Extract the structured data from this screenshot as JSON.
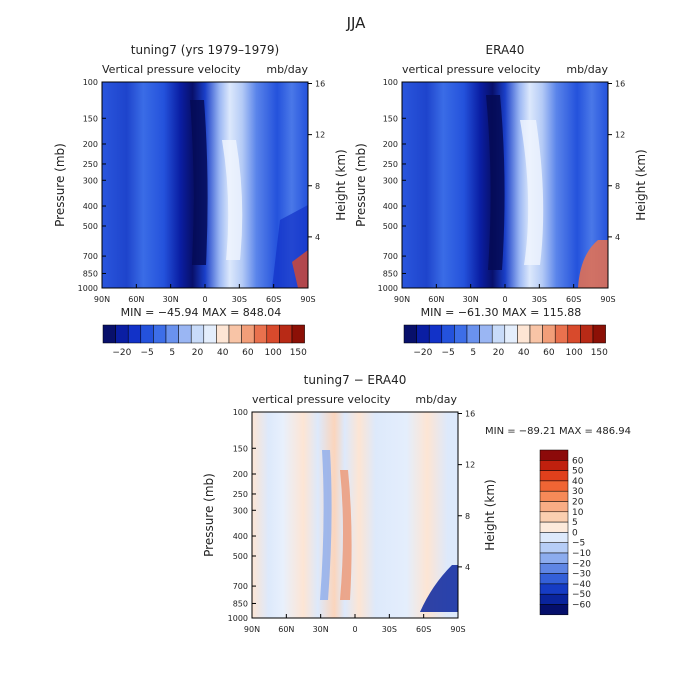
{
  "figure_title": "JJA",
  "chart_data": [
    {
      "type": "heatmap",
      "title": "tuning7 (yrs 1979–1979)",
      "subtitle_left": "Vertical pressure velocity",
      "subtitle_right": "mb/day",
      "x": [
        "90N",
        "60N",
        "30N",
        "0",
        "30S",
        "60S",
        "90S"
      ],
      "y_left": [
        "100",
        "150",
        "200",
        "250",
        "300",
        "400",
        "500",
        "700",
        "850",
        "1000"
      ],
      "y_right": [
        "16",
        "12",
        "8",
        "4"
      ],
      "ylabel_left": "Pressure (mb)",
      "ylabel_right": "Height (km)",
      "stats": "MIN = −45.94   MAX = 848.04",
      "colorbar": {
        "labels": [
          "−20",
          "−5",
          "5",
          "20",
          "40",
          "60",
          "100",
          "150"
        ],
        "colors": [
          "#08106b",
          "#0a1ea3",
          "#1232c8",
          "#2452dc",
          "#3d6ee8",
          "#6a92ee",
          "#9ab6f3",
          "#c8dbf9",
          "#e4eefc",
          "#fde5d4",
          "#f8c4a6",
          "#f29e79",
          "#e9714e",
          "#d84a2c",
          "#b82a16",
          "#8c1006"
        ]
      }
    },
    {
      "type": "heatmap",
      "title": "ERA40",
      "subtitle_left": "vertical pressure velocity",
      "subtitle_right": "mb/day",
      "x": [
        "90N",
        "60N",
        "30N",
        "0",
        "30S",
        "60S",
        "90S"
      ],
      "y_left": [
        "100",
        "150",
        "200",
        "250",
        "300",
        "400",
        "500",
        "700",
        "850",
        "1000"
      ],
      "y_right": [
        "16",
        "12",
        "8",
        "4"
      ],
      "ylabel_left": "Pressure (mb)",
      "ylabel_right": "Height (km)",
      "stats": "MIN = −61.30   MAX = 115.88",
      "colorbar": {
        "labels": [
          "−20",
          "−5",
          "5",
          "20",
          "40",
          "60",
          "100",
          "150"
        ],
        "colors": [
          "#08106b",
          "#0a1ea3",
          "#1232c8",
          "#2452dc",
          "#3d6ee8",
          "#6a92ee",
          "#9ab6f3",
          "#c8dbf9",
          "#e4eefc",
          "#fde5d4",
          "#f8c4a6",
          "#f29e79",
          "#e9714e",
          "#d84a2c",
          "#b82a16",
          "#8c1006"
        ]
      }
    },
    {
      "type": "heatmap",
      "title": "tuning7 − ERA40",
      "subtitle_left": "vertical pressure velocity",
      "subtitle_right": "mb/day",
      "x": [
        "90N",
        "60N",
        "30N",
        "0",
        "30S",
        "60S",
        "90S"
      ],
      "y_left": [
        "100",
        "150",
        "200",
        "250",
        "300",
        "400",
        "500",
        "700",
        "850",
        "1000"
      ],
      "y_right": [
        "16",
        "12",
        "8",
        "4"
      ],
      "ylabel_left": "Pressure (mb)",
      "ylabel_right": "Height (km)",
      "stats": "MIN = −89.21   MAX = 486.94",
      "colorbar": {
        "labels": [
          "60",
          "50",
          "40",
          "30",
          "20",
          "10",
          "5",
          "0",
          "−5",
          "−10",
          "−20",
          "−30",
          "−40",
          "−50",
          "−60"
        ],
        "colors": [
          "#8c0a0a",
          "#c0200e",
          "#e0401c",
          "#f06534",
          "#f68a58",
          "#f9ad85",
          "#fbcfb0",
          "#fdeadb",
          "#dde9fb",
          "#b6cdf6",
          "#8cacee",
          "#5f86e4",
          "#3460d8",
          "#163cc4",
          "#0a249c",
          "#050f6b"
        ]
      }
    }
  ]
}
